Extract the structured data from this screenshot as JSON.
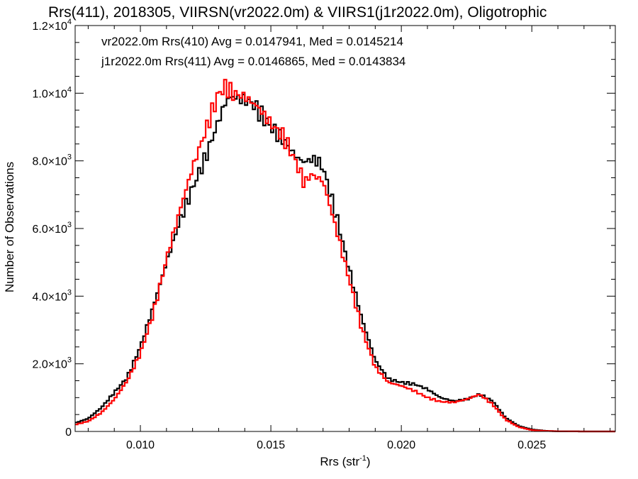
{
  "chart_data": {
    "type": "line",
    "title": "Rrs(411), 2018305, VIIRSN(vr2022.0m) & VIIRS1(j1r2022.0m), Oligotrophic",
    "xlabel_base": "Rrs (str",
    "xlabel_sup": "-1",
    "xlabel_tail": ")",
    "ylabel": "Number of Observations",
    "xlim": [
      0.0075,
      0.0282
    ],
    "ylim": [
      0,
      12000
    ],
    "x_ticks": [
      {
        "value": 0.01,
        "label": "0.010"
      },
      {
        "value": 0.015,
        "label": "0.015"
      },
      {
        "value": 0.02,
        "label": "0.020"
      },
      {
        "value": 0.025,
        "label": "0.025"
      }
    ],
    "y_ticks": [
      {
        "value": 0,
        "mant": "0",
        "exp": ""
      },
      {
        "value": 2000,
        "mant": "2.0×10",
        "exp": "3"
      },
      {
        "value": 4000,
        "mant": "4.0×10",
        "exp": "3"
      },
      {
        "value": 6000,
        "mant": "6.0×10",
        "exp": "3"
      },
      {
        "value": 8000,
        "mant": "8.0×10",
        "exp": "3"
      },
      {
        "value": 10000,
        "mant": "1.0×10",
        "exp": "4"
      },
      {
        "value": 12000,
        "mant": "1.2×10",
        "exp": "4"
      }
    ],
    "legend_placement": "top-left",
    "series": [
      {
        "name": "vr2022.0m Rrs(410) Avg = 0.0147941, Med = 0.0145214",
        "color": "#000000",
        "points": [
          [
            0.0075,
            250
          ],
          [
            0.008,
            380
          ],
          [
            0.0085,
            700
          ],
          [
            0.009,
            1150
          ],
          [
            0.0095,
            1600
          ],
          [
            0.01,
            2500
          ],
          [
            0.0105,
            3700
          ],
          [
            0.011,
            5000
          ],
          [
            0.0115,
            6200
          ],
          [
            0.012,
            7200
          ],
          [
            0.0125,
            8100
          ],
          [
            0.013,
            9200
          ],
          [
            0.0133,
            9800
          ],
          [
            0.0135,
            9900
          ],
          [
            0.014,
            9800
          ],
          [
            0.0143,
            9700
          ],
          [
            0.0147,
            9300
          ],
          [
            0.015,
            9000
          ],
          [
            0.0155,
            8600
          ],
          [
            0.016,
            8100
          ],
          [
            0.0163,
            7950
          ],
          [
            0.0165,
            8050
          ],
          [
            0.0168,
            8000
          ],
          [
            0.017,
            7800
          ],
          [
            0.0175,
            6400
          ],
          [
            0.018,
            4800
          ],
          [
            0.0185,
            3300
          ],
          [
            0.019,
            2100
          ],
          [
            0.0195,
            1550
          ],
          [
            0.02,
            1450
          ],
          [
            0.0205,
            1400
          ],
          [
            0.021,
            1250
          ],
          [
            0.0215,
            1000
          ],
          [
            0.022,
            900
          ],
          [
            0.0225,
            950
          ],
          [
            0.023,
            1100
          ],
          [
            0.0235,
            900
          ],
          [
            0.024,
            400
          ],
          [
            0.0245,
            160
          ],
          [
            0.025,
            60
          ],
          [
            0.0255,
            20
          ],
          [
            0.026,
            5
          ],
          [
            0.027,
            0
          ],
          [
            0.0282,
            0
          ]
        ]
      },
      {
        "name": "j1r2022.0m Rrs(411) Avg = 0.0146865, Med = 0.0143834",
        "color": "#ff0000",
        "points": [
          [
            0.0075,
            200
          ],
          [
            0.008,
            300
          ],
          [
            0.0085,
            550
          ],
          [
            0.009,
            950
          ],
          [
            0.0095,
            1500
          ],
          [
            0.01,
            2300
          ],
          [
            0.0105,
            3500
          ],
          [
            0.011,
            5100
          ],
          [
            0.0115,
            6500
          ],
          [
            0.012,
            7800
          ],
          [
            0.0125,
            8900
          ],
          [
            0.013,
            10000
          ],
          [
            0.0133,
            10200
          ],
          [
            0.0135,
            10000
          ],
          [
            0.014,
            9900
          ],
          [
            0.0145,
            9600
          ],
          [
            0.015,
            9100
          ],
          [
            0.0155,
            8700
          ],
          [
            0.016,
            7900
          ],
          [
            0.0163,
            7300
          ],
          [
            0.0165,
            7600
          ],
          [
            0.0168,
            7500
          ],
          [
            0.017,
            7400
          ],
          [
            0.0175,
            6000
          ],
          [
            0.018,
            4500
          ],
          [
            0.0185,
            3000
          ],
          [
            0.019,
            1900
          ],
          [
            0.0195,
            1450
          ],
          [
            0.02,
            1350
          ],
          [
            0.0205,
            1200
          ],
          [
            0.021,
            1000
          ],
          [
            0.0215,
            880
          ],
          [
            0.022,
            860
          ],
          [
            0.0225,
            950
          ],
          [
            0.023,
            1100
          ],
          [
            0.0235,
            800
          ],
          [
            0.024,
            350
          ],
          [
            0.0245,
            130
          ],
          [
            0.025,
            40
          ],
          [
            0.0255,
            15
          ],
          [
            0.026,
            5
          ],
          [
            0.027,
            0
          ],
          [
            0.0282,
            0
          ]
        ]
      }
    ]
  }
}
